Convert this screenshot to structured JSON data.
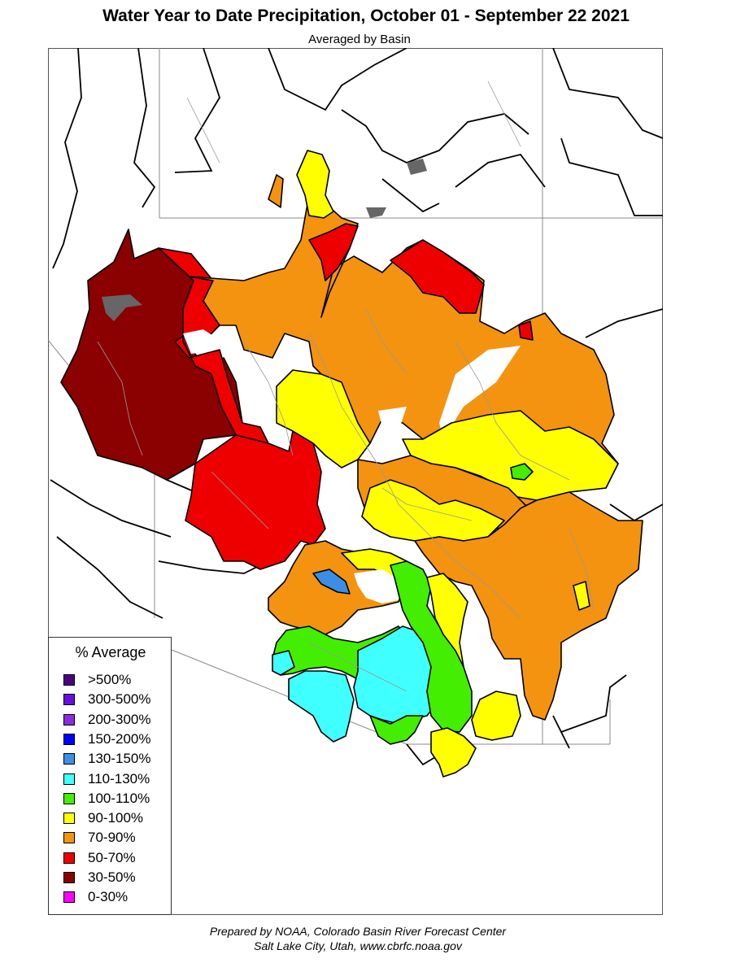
{
  "header": {
    "title": "Water Year to Date Precipitation, October 01  - September 22 2021",
    "subtitle": "Averaged by Basin"
  },
  "legend": {
    "title": "% Average",
    "items": [
      {
        "label": ">500%",
        "color": "#4b0082"
      },
      {
        "label": "300-500%",
        "color": "#6a0ddd"
      },
      {
        "label": "200-300%",
        "color": "#8a2be2"
      },
      {
        "label": "150-200%",
        "color": "#0000ff"
      },
      {
        "label": "130-150%",
        "color": "#3a8ee6"
      },
      {
        "label": "110-130%",
        "color": "#40ffff"
      },
      {
        "label": "100-110%",
        "color": "#44ee00"
      },
      {
        "label": "90-100%",
        "color": "#ffff00"
      },
      {
        "label": "70-90%",
        "color": "#f39310"
      },
      {
        "label": "50-70%",
        "color": "#ee0000"
      },
      {
        "label": "30-50%",
        "color": "#8b0000"
      },
      {
        "label": "0-30%",
        "color": "#ff00ff"
      }
    ]
  },
  "credit": {
    "line1": "Prepared by NOAA, Colorado Basin River Forecast Center",
    "line2": "Salt Lake City, Utah, www.cbrfc.noaa.gov"
  }
}
